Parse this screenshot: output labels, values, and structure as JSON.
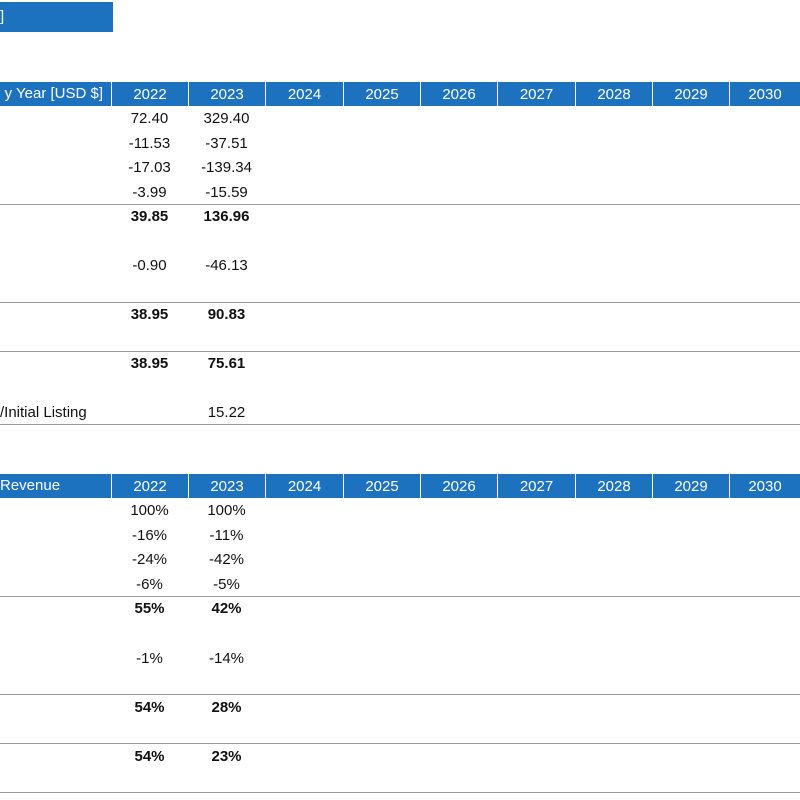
{
  "title_text": "]",
  "years": [
    "2022",
    "2023",
    "2024",
    "2025",
    "2026",
    "2027",
    "2028",
    "2029",
    "2030"
  ],
  "table1": {
    "header_label": "y Year [USD $]",
    "rows": [
      {
        "label": "",
        "v2022": "72.40",
        "v2023": "329.40",
        "bold": false
      },
      {
        "label": "",
        "v2022": "-11.53",
        "v2023": "-37.51",
        "bold": false
      },
      {
        "label": "",
        "v2022": "-17.03",
        "v2023": "-139.34",
        "bold": false
      },
      {
        "label": "",
        "v2022": "-3.99",
        "v2023": "-15.59",
        "bold": false
      },
      {
        "label": "",
        "v2022": "39.85",
        "v2023": "136.96",
        "bold": true
      },
      {
        "label": "",
        "v2022": "-0.90",
        "v2023": "-46.13",
        "bold": false
      },
      {
        "label": "",
        "v2022": "38.95",
        "v2023": "90.83",
        "bold": true
      },
      {
        "label": "",
        "v2022": "38.95",
        "v2023": "75.61",
        "bold": true
      },
      {
        "label": "/Initial Listing",
        "v2022": "",
        "v2023": "15.22",
        "bold": false
      }
    ]
  },
  "table2": {
    "header_label": "Revenue",
    "rows": [
      {
        "label": "",
        "v2022": "100%",
        "v2023": "100%",
        "bold": false
      },
      {
        "label": "",
        "v2022": "-16%",
        "v2023": "-11%",
        "bold": false
      },
      {
        "label": "",
        "v2022": "-24%",
        "v2023": "-42%",
        "bold": false
      },
      {
        "label": "",
        "v2022": "-6%",
        "v2023": "-5%",
        "bold": false
      },
      {
        "label": "",
        "v2022": "55%",
        "v2023": "42%",
        "bold": true
      },
      {
        "label": "",
        "v2022": "-1%",
        "v2023": "-14%",
        "bold": false
      },
      {
        "label": "",
        "v2022": "54%",
        "v2023": "28%",
        "bold": true
      },
      {
        "label": "",
        "v2022": "54%",
        "v2023": "23%",
        "bold": true
      }
    ]
  }
}
